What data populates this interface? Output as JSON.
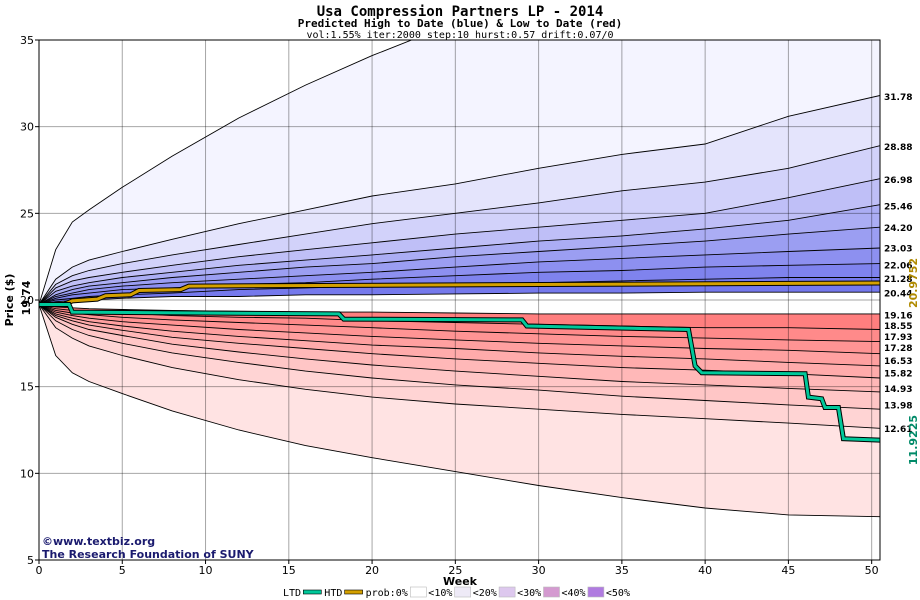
{
  "chart_data": {
    "type": "area",
    "title": "Usa Compression Partners LP - 2014",
    "subtitle": "Predicted High to Date (blue) &  Low to Date (red)",
    "params": "vol:1.55% iter:2000 step:10 hurst:0.57 drift:0.07/0",
    "xlabel": "Week",
    "ylabel": "Price ($)",
    "xlim": [
      0,
      50.5
    ],
    "ylim": [
      5,
      35
    ],
    "x_ticks": [
      0,
      5,
      10,
      15,
      20,
      25,
      30,
      35,
      40,
      45,
      50
    ],
    "y_ticks": [
      5,
      10,
      15,
      20,
      25,
      30,
      35
    ],
    "start_price": "19.74",
    "weeks": [
      0,
      1,
      2,
      3,
      5,
      8,
      12,
      16,
      20,
      25,
      30,
      35,
      40,
      45,
      50.5
    ],
    "high_quantiles": [
      {
        "label": "31.78",
        "values": [
          19.74,
          22.9,
          24.5,
          25.2,
          26.5,
          28.3,
          30.5,
          32.4,
          34.1,
          36.0,
          38.0,
          40.0,
          42.0,
          44.0,
          46.0
        ]
      },
      {
        "label": "28.88",
        "values": [
          19.74,
          21.2,
          21.9,
          22.3,
          22.8,
          23.5,
          24.4,
          25.2,
          26.0,
          26.7,
          27.6,
          28.4,
          29.0,
          30.6,
          31.8
        ]
      },
      {
        "label": "26.98",
        "values": [
          19.74,
          20.9,
          21.4,
          21.7,
          22.1,
          22.6,
          23.2,
          23.8,
          24.4,
          25.0,
          25.6,
          26.3,
          26.8,
          27.6,
          28.9
        ]
      },
      {
        "label": "25.46",
        "values": [
          19.74,
          20.7,
          21.1,
          21.3,
          21.6,
          22.0,
          22.5,
          22.9,
          23.3,
          23.8,
          24.2,
          24.6,
          25.0,
          25.9,
          27.0
        ]
      },
      {
        "label": "24.20",
        "values": [
          19.74,
          20.5,
          20.8,
          21.0,
          21.3,
          21.6,
          22.0,
          22.3,
          22.6,
          23.0,
          23.4,
          23.7,
          24.1,
          24.6,
          25.5
        ]
      },
      {
        "label": "23.03",
        "values": [
          19.74,
          20.3,
          20.6,
          20.8,
          21.0,
          21.3,
          21.6,
          21.9,
          22.1,
          22.5,
          22.8,
          23.1,
          23.4,
          23.8,
          24.2
        ]
      },
      {
        "label": "22.06",
        "values": [
          19.74,
          20.2,
          20.4,
          20.6,
          20.8,
          21.0,
          21.2,
          21.4,
          21.6,
          21.9,
          22.2,
          22.4,
          22.6,
          22.8,
          23.0
        ]
      },
      {
        "label": "21.28",
        "values": [
          19.74,
          20.1,
          20.3,
          20.4,
          20.6,
          20.7,
          20.9,
          21.0,
          21.2,
          21.4,
          21.6,
          21.7,
          21.9,
          22.0,
          22.1
        ]
      },
      {
        "label": "20.44",
        "values": [
          19.74,
          20.0,
          20.1,
          20.2,
          20.3,
          20.4,
          20.6,
          20.7,
          20.8,
          20.9,
          21.0,
          21.1,
          21.2,
          21.3,
          21.3
        ]
      },
      {
        "label": "",
        "values": [
          19.74,
          19.9,
          19.95,
          20.0,
          20.1,
          20.2,
          20.2,
          20.3,
          20.3,
          20.35,
          20.4,
          20.4,
          20.45,
          20.45,
          20.45
        ]
      }
    ],
    "low_quantiles": [
      {
        "label": "",
        "values": [
          19.74,
          19.6,
          19.55,
          19.5,
          19.45,
          19.4,
          19.35,
          19.3,
          19.3,
          19.25,
          19.2,
          19.2,
          19.2,
          19.2,
          19.2
        ]
      },
      {
        "label": "19.16",
        "values": [
          19.74,
          19.5,
          19.4,
          19.35,
          19.25,
          19.1,
          19.0,
          18.95,
          18.8,
          18.7,
          18.6,
          18.5,
          18.4,
          18.4,
          18.3
        ]
      },
      {
        "label": "18.55",
        "values": [
          19.74,
          19.4,
          19.25,
          19.15,
          19.0,
          18.85,
          18.7,
          18.55,
          18.4,
          18.2,
          18.05,
          17.9,
          17.8,
          17.7,
          17.6
        ]
      },
      {
        "label": "17.93",
        "values": [
          19.74,
          19.3,
          19.1,
          18.95,
          18.75,
          18.55,
          18.3,
          18.1,
          17.9,
          17.7,
          17.5,
          17.35,
          17.2,
          17.1,
          16.9
        ]
      },
      {
        "label": "17.28",
        "values": [
          19.74,
          19.2,
          18.95,
          18.75,
          18.5,
          18.2,
          17.9,
          17.65,
          17.4,
          17.2,
          16.95,
          16.75,
          16.6,
          16.4,
          16.2
        ]
      },
      {
        "label": "16.53",
        "values": [
          19.74,
          19.1,
          18.8,
          18.55,
          18.25,
          17.85,
          17.5,
          17.2,
          16.9,
          16.6,
          16.35,
          16.1,
          15.95,
          15.75,
          15.5
        ]
      },
      {
        "label": "15.82",
        "values": [
          19.74,
          19.0,
          18.6,
          18.3,
          17.95,
          17.45,
          17.0,
          16.6,
          16.25,
          15.9,
          15.6,
          15.3,
          15.1,
          14.9,
          14.7
        ]
      },
      {
        "label": "14.93",
        "values": [
          19.74,
          18.8,
          18.3,
          17.95,
          17.5,
          16.95,
          16.4,
          15.9,
          15.5,
          15.1,
          14.8,
          14.45,
          14.2,
          13.95,
          13.7
        ]
      },
      {
        "label": "13.98",
        "values": [
          19.74,
          18.4,
          17.8,
          17.35,
          16.8,
          16.1,
          15.4,
          14.85,
          14.4,
          14.0,
          13.7,
          13.4,
          13.15,
          12.9,
          12.6
        ]
      },
      {
        "label": "12.61",
        "values": [
          19.74,
          16.8,
          15.8,
          15.3,
          14.6,
          13.6,
          12.5,
          11.6,
          10.9,
          10.1,
          9.3,
          8.6,
          8.0,
          7.6,
          7.5
        ]
      }
    ],
    "band_colors_high": [
      "#f4f4ff",
      "#e4e4fc",
      "#d2d2fa",
      "#bfbff7",
      "#abadf4",
      "#9b9ef2",
      "#8d90f0",
      "#7f83ee",
      "#7579ec"
    ],
    "band_colors_low": [
      "#ff7f7f",
      "#ff8a8a",
      "#ff9494",
      "#ffa0a0",
      "#ffabab",
      "#ffb8b8",
      "#ffc6c6",
      "#ffd4d4",
      "#ffe3e3"
    ],
    "htd_series": {
      "color": "#d4a000",
      "final_label": "20.9752",
      "points": [
        [
          0,
          19.74
        ],
        [
          1.5,
          19.74
        ],
        [
          2,
          19.95
        ],
        [
          3.5,
          20.05
        ],
        [
          4,
          20.25
        ],
        [
          5.5,
          20.3
        ],
        [
          6,
          20.55
        ],
        [
          8.5,
          20.6
        ],
        [
          9,
          20.8
        ],
        [
          50.5,
          20.98
        ]
      ]
    },
    "ltd_series": {
      "color": "#00c89a",
      "final_label": "11.9225",
      "points": [
        [
          0,
          19.74
        ],
        [
          1.8,
          19.74
        ],
        [
          2,
          19.3
        ],
        [
          18,
          19.2
        ],
        [
          18.3,
          18.9
        ],
        [
          29,
          18.85
        ],
        [
          29.3,
          18.5
        ],
        [
          39,
          18.3
        ],
        [
          39.4,
          16.2
        ],
        [
          39.8,
          15.8
        ],
        [
          46,
          15.75
        ],
        [
          46.2,
          14.4
        ],
        [
          47,
          14.3
        ],
        [
          47.2,
          13.8
        ],
        [
          48,
          13.8
        ],
        [
          48.3,
          12.0
        ],
        [
          50.5,
          11.92
        ]
      ]
    },
    "watermark": [
      "©www.textbiz.org",
      "The Research Foundation of SUNY"
    ],
    "legend": {
      "ltd": "LTD",
      "htd": "HTD",
      "prob": "prob:0%",
      "buckets": [
        "<10%",
        "<20%",
        "<30%",
        "<40%",
        "<50%"
      ],
      "bucket_colors": [
        "#ffffff",
        "#eeeaf7",
        "#ddc8ee",
        "#d49ad0",
        "#b07be0"
      ]
    }
  }
}
